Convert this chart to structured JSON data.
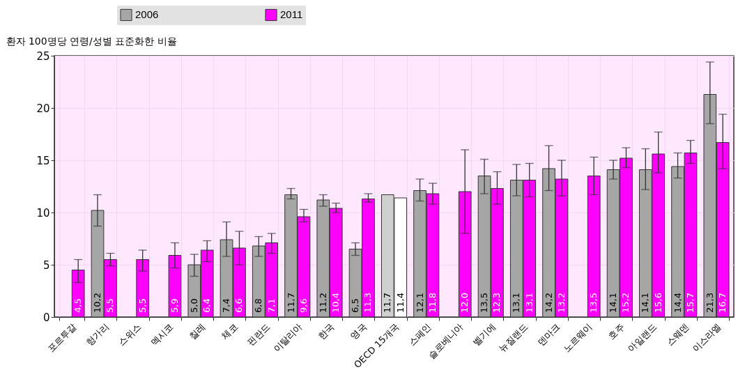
{
  "chart_data": {
    "type": "bar",
    "ylabel": "환자 100명당 연령/성별 표준화한 비율",
    "categories": [
      "포르투갈",
      "헝가리",
      "스위스",
      "멕시코",
      "칠레",
      "체코",
      "핀란드",
      "이탈리아",
      "한국",
      "영국",
      "OECD 15개국",
      "스페인",
      "슬로베니아",
      "벨기에",
      "뉴질랜드",
      "덴마크",
      "노르웨이",
      "호주",
      "아일랜드",
      "스웨덴",
      "이스라엘"
    ],
    "series": [
      {
        "name": "2006",
        "color": "#a6a6a6",
        "colors": [
          null,
          "#a6a6a6",
          null,
          null,
          "#a6a6a6",
          "#a6a6a6",
          "#a6a6a6",
          "#a6a6a6",
          "#a6a6a6",
          "#a6a6a6",
          "#d0d0d0",
          "#a6a6a6",
          null,
          "#a6a6a6",
          "#a6a6a6",
          "#a6a6a6",
          null,
          "#a6a6a6",
          "#a6a6a6",
          "#a6a6a6",
          "#a6a6a6"
        ],
        "values": [
          null,
          10.2,
          null,
          null,
          5.0,
          7.4,
          6.8,
          11.7,
          11.2,
          6.5,
          11.7,
          12.1,
          null,
          13.5,
          13.1,
          14.2,
          null,
          14.1,
          14.1,
          14.4,
          21.3
        ],
        "value_labels": [
          null,
          "10,2",
          null,
          null,
          "5,0",
          "7,4",
          "6,8",
          "11,7",
          "11,2",
          "6,5",
          "11,7",
          "12,1",
          null,
          "13,5",
          "13,1",
          "14,2",
          null,
          "14,1",
          "14,1",
          "14,4",
          "21,3"
        ],
        "errors": [
          null,
          [
            8.7,
            11.7
          ],
          null,
          null,
          [
            3.9,
            6.0
          ],
          [
            5.8,
            9.1
          ],
          [
            5.8,
            7.7
          ],
          [
            11.3,
            12.3
          ],
          [
            10.6,
            11.7
          ],
          [
            5.9,
            7.1
          ],
          null,
          [
            11.1,
            13.2
          ],
          null,
          [
            11.8,
            15.1
          ],
          [
            11.6,
            14.6
          ],
          [
            12.1,
            16.4
          ],
          null,
          [
            13.2,
            15.0
          ],
          [
            12.2,
            16.1
          ],
          [
            13.3,
            15.7
          ],
          [
            18.5,
            24.4
          ]
        ]
      },
      {
        "name": "2011",
        "color": "#ff00ff",
        "colors": [
          "#ff00ff",
          "#ff00ff",
          "#ff00ff",
          "#ff00ff",
          "#ff00ff",
          "#ff00ff",
          "#ff00ff",
          "#ff00ff",
          "#ff00ff",
          "#ff00ff",
          "#ffffff",
          "#ff00ff",
          "#ff00ff",
          "#ff00ff",
          "#ff00ff",
          "#ff00ff",
          "#ff00ff",
          "#ff00ff",
          "#ff00ff",
          "#ff00ff",
          "#ff00ff"
        ],
        "values": [
          4.5,
          5.5,
          5.5,
          5.9,
          6.4,
          6.6,
          7.1,
          9.6,
          10.4,
          11.3,
          11.4,
          11.8,
          12.0,
          12.3,
          13.1,
          13.2,
          13.5,
          15.2,
          15.6,
          15.7,
          16.7
        ],
        "value_labels": [
          "4,5",
          "5,5",
          "5,5",
          "5,9",
          "6,4",
          "6,6",
          "7,1",
          "9,6",
          "10,4",
          "11,3",
          "11,4",
          "11,8",
          "12,0",
          "12,3",
          "13,1",
          "13,2",
          "13,5",
          "15,2",
          "15,6",
          "15,7",
          "16,7"
        ],
        "errors": [
          [
            3.3,
            5.5
          ],
          [
            4.9,
            6.1
          ],
          [
            4.4,
            6.4
          ],
          [
            4.7,
            7.1
          ],
          [
            5.3,
            7.3
          ],
          [
            5.0,
            8.2
          ],
          [
            6.1,
            8.0
          ],
          [
            9.1,
            10.3
          ],
          [
            10.0,
            10.9
          ],
          [
            11.0,
            11.8
          ],
          null,
          [
            10.8,
            12.8
          ],
          [
            8.0,
            16.0
          ],
          [
            10.8,
            13.9
          ],
          [
            11.5,
            14.7
          ],
          [
            11.6,
            15.0
          ],
          [
            11.7,
            15.3
          ],
          [
            14.3,
            16.2
          ],
          [
            13.8,
            17.7
          ],
          [
            14.7,
            16.9
          ],
          [
            14.2,
            19.4
          ]
        ]
      }
    ],
    "ylim": [
      0,
      25
    ],
    "yticks": [
      0,
      5,
      10,
      15,
      20,
      25
    ],
    "grid": true,
    "legend": "top"
  }
}
